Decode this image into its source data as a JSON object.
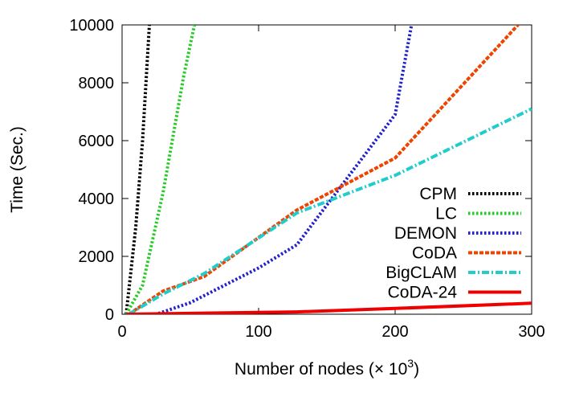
{
  "chart_data": {
    "type": "line",
    "xlabel": "Number of nodes (× 10",
    "xlabel_sup": "3",
    "xlabel_close": ")",
    "ylabel": "Time (Sec.)",
    "xlim": [
      0,
      300
    ],
    "ylim": [
      0,
      10000
    ],
    "xticks": [
      0,
      100,
      200,
      300
    ],
    "yticks": [
      0,
      2000,
      4000,
      6000,
      8000,
      10000
    ],
    "grid": false,
    "legend_position": "bottom-right",
    "series": [
      {
        "name": "CPM",
        "color": "#000000",
        "dash": "dotted",
        "x": [
          3,
          10,
          15,
          20
        ],
        "y": [
          0,
          3000,
          6000,
          10000
        ]
      },
      {
        "name": "LC",
        "color": "#22cc22",
        "dash": "dotted",
        "x": [
          3,
          15,
          30,
          45,
          53
        ],
        "y": [
          0,
          1000,
          4200,
          8200,
          10000
        ]
      },
      {
        "name": "DEMON",
        "color": "#2222cc",
        "dash": "dotted",
        "x": [
          15,
          25,
          50,
          100,
          128,
          200,
          212
        ],
        "y": [
          0,
          0,
          400,
          1600,
          2400,
          6900,
          10000
        ]
      },
      {
        "name": "CoDA",
        "color": "#ee4400",
        "dash": "dashed",
        "x": [
          5,
          30,
          60,
          128,
          200,
          290
        ],
        "y": [
          0,
          800,
          1300,
          3600,
          5400,
          10000
        ]
      },
      {
        "name": "BigCLAM",
        "color": "#22cccc",
        "dash": "dash-dot",
        "x": [
          5,
          30,
          60,
          128,
          200,
          300
        ],
        "y": [
          0,
          700,
          1400,
          3500,
          4800,
          7100
        ]
      },
      {
        "name": "CoDA-24",
        "color": "#ee0000",
        "dash": "solid",
        "x": [
          3,
          50,
          128,
          200,
          300
        ],
        "y": [
          0,
          30,
          80,
          200,
          380
        ]
      }
    ]
  }
}
